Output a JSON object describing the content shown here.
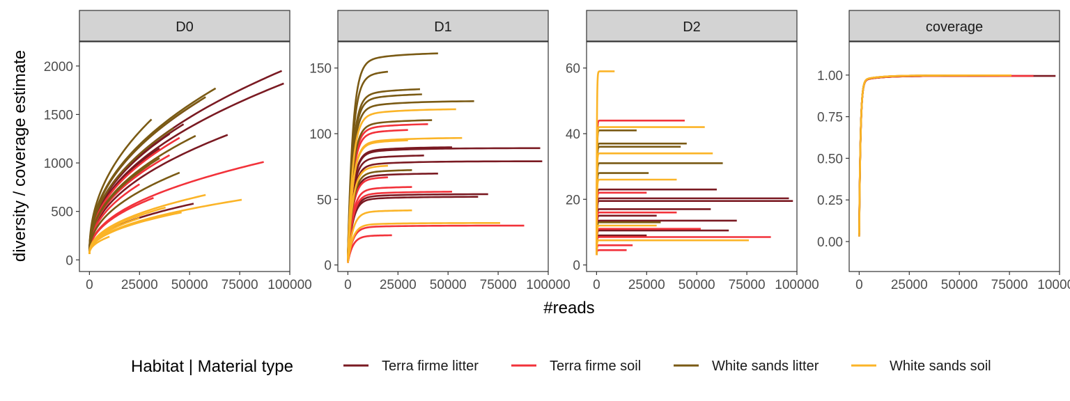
{
  "figure": {
    "ylabel": "diversity / coverage estimate",
    "xlabel": "#reads"
  },
  "legend": {
    "title": "Habitat | Material type",
    "placement": "bottom",
    "entries": [
      {
        "label": "Terra firme litter",
        "color": "#7a1a22"
      },
      {
        "label": "Terra firme soil",
        "color": "#f2323a"
      },
      {
        "label": "White sands litter",
        "color": "#7a5a14"
      },
      {
        "label": "White sands soil",
        "color": "#fbb427"
      }
    ]
  },
  "chart_data": [
    {
      "type": "line",
      "panel": "D0",
      "xlim": [
        -5000,
        100000
      ],
      "ylim": [
        -120,
        2250
      ],
      "xticks": [
        0,
        25000,
        50000,
        75000,
        100000
      ],
      "xtick_labels": [
        "0",
        "25000",
        "50000",
        "75000",
        "100000"
      ],
      "yticks": [
        0,
        500,
        1000,
        1500,
        2000
      ],
      "ytick_labels": [
        "0",
        "500",
        "1000",
        "1500",
        "2000"
      ],
      "grid": false,
      "series": [
        {
          "group": 0,
          "xmax": 97000,
          "ymax": 1820
        },
        {
          "group": 0,
          "xmax": 96000,
          "ymax": 1950
        },
        {
          "group": 0,
          "xmax": 69000,
          "ymax": 1290
        },
        {
          "group": 0,
          "xmax": 52000,
          "ymax": 580
        },
        {
          "group": 0,
          "xmax": 55000,
          "ymax": 1640
        },
        {
          "group": 0,
          "xmax": 47000,
          "ymax": 1400
        },
        {
          "group": 0,
          "xmax": 40000,
          "ymax": 1300
        },
        {
          "group": 0,
          "xmax": 35000,
          "ymax": 1150
        },
        {
          "group": 1,
          "xmax": 87000,
          "ymax": 1010
        },
        {
          "group": 1,
          "xmax": 45000,
          "ymax": 1260
        },
        {
          "group": 1,
          "xmax": 40000,
          "ymax": 1080
        },
        {
          "group": 1,
          "xmax": 30000,
          "ymax": 980
        },
        {
          "group": 1,
          "xmax": 32000,
          "ymax": 640
        },
        {
          "group": 1,
          "xmax": 25000,
          "ymax": 780
        },
        {
          "group": 2,
          "xmax": 63000,
          "ymax": 1770
        },
        {
          "group": 2,
          "xmax": 58000,
          "ymax": 1680
        },
        {
          "group": 2,
          "xmax": 31000,
          "ymax": 1450
        },
        {
          "group": 2,
          "xmax": 42000,
          "ymax": 1360
        },
        {
          "group": 2,
          "xmax": 53000,
          "ymax": 1280
        },
        {
          "group": 2,
          "xmax": 45000,
          "ymax": 900
        },
        {
          "group": 2,
          "xmax": 35000,
          "ymax": 1050
        },
        {
          "group": 3,
          "xmax": 76000,
          "ymax": 620
        },
        {
          "group": 3,
          "xmax": 58000,
          "ymax": 670
        },
        {
          "group": 3,
          "xmax": 46000,
          "ymax": 490
        },
        {
          "group": 3,
          "xmax": 38000,
          "ymax": 540
        },
        {
          "group": 3,
          "xmax": 25000,
          "ymax": 430
        },
        {
          "group": 3,
          "xmax": 10000,
          "ymax": 240
        }
      ]
    },
    {
      "type": "line",
      "panel": "D1",
      "xlim": [
        -5000,
        100000
      ],
      "ylim": [
        -5,
        170
      ],
      "xticks": [
        0,
        25000,
        50000,
        75000,
        100000
      ],
      "xtick_labels": [
        "0",
        "25000",
        "50000",
        "75000",
        "100000"
      ],
      "yticks": [
        0,
        50,
        100,
        150
      ],
      "ytick_labels": [
        "0",
        "50",
        "100",
        "150"
      ],
      "grid": false,
      "series": [
        {
          "group": 0,
          "xmax": 97000,
          "ymax": 79
        },
        {
          "group": 0,
          "xmax": 96000,
          "ymax": 89
        },
        {
          "group": 0,
          "xmax": 70000,
          "ymax": 54
        },
        {
          "group": 0,
          "xmax": 52000,
          "ymax": 90
        },
        {
          "group": 0,
          "xmax": 45000,
          "ymax": 70
        },
        {
          "group": 0,
          "xmax": 38000,
          "ymax": 84
        },
        {
          "group": 0,
          "xmax": 65000,
          "ymax": 52
        },
        {
          "group": 1,
          "xmax": 88000,
          "ymax": 30
        },
        {
          "group": 1,
          "xmax": 52000,
          "ymax": 56
        },
        {
          "group": 1,
          "xmax": 40000,
          "ymax": 108
        },
        {
          "group": 1,
          "xmax": 30000,
          "ymax": 104
        },
        {
          "group": 1,
          "xmax": 32000,
          "ymax": 60
        },
        {
          "group": 1,
          "xmax": 20000,
          "ymax": 68
        },
        {
          "group": 1,
          "xmax": 22000,
          "ymax": 23
        },
        {
          "group": 2,
          "xmax": 45000,
          "ymax": 162
        },
        {
          "group": 2,
          "xmax": 20000,
          "ymax": 150
        },
        {
          "group": 2,
          "xmax": 36000,
          "ymax": 135
        },
        {
          "group": 2,
          "xmax": 63000,
          "ymax": 125
        },
        {
          "group": 2,
          "xmax": 37000,
          "ymax": 131
        },
        {
          "group": 2,
          "xmax": 42000,
          "ymax": 111
        },
        {
          "group": 2,
          "xmax": 32000,
          "ymax": 73
        },
        {
          "group": 3,
          "xmax": 54000,
          "ymax": 119
        },
        {
          "group": 3,
          "xmax": 57000,
          "ymax": 97
        },
        {
          "group": 3,
          "xmax": 76000,
          "ymax": 32
        },
        {
          "group": 3,
          "xmax": 32000,
          "ymax": 42
        },
        {
          "group": 3,
          "xmax": 30000,
          "ymax": 96
        },
        {
          "group": 3,
          "xmax": 20000,
          "ymax": 77
        }
      ]
    },
    {
      "type": "line",
      "panel": "D2",
      "xlim": [
        -5000,
        100000
      ],
      "ylim": [
        -2,
        68
      ],
      "xticks": [
        0,
        25000,
        50000,
        75000,
        100000
      ],
      "xtick_labels": [
        "0",
        "25000",
        "50000",
        "75000",
        "100000"
      ],
      "yticks": [
        0,
        20,
        40,
        60
      ],
      "ytick_labels": [
        "0",
        "20",
        "40",
        "60"
      ],
      "grid": false,
      "series": [
        {
          "group": 0,
          "xmax": 98000,
          "ymax": 19.5
        },
        {
          "group": 0,
          "xmax": 96000,
          "ymax": 20.3
        },
        {
          "group": 0,
          "xmax": 60000,
          "ymax": 23
        },
        {
          "group": 0,
          "xmax": 57000,
          "ymax": 17
        },
        {
          "group": 0,
          "xmax": 70000,
          "ymax": 13.5
        },
        {
          "group": 0,
          "xmax": 66000,
          "ymax": 10.5
        },
        {
          "group": 0,
          "xmax": 30000,
          "ymax": 15
        },
        {
          "group": 0,
          "xmax": 25000,
          "ymax": 9
        },
        {
          "group": 1,
          "xmax": 87000,
          "ymax": 8.5
        },
        {
          "group": 1,
          "xmax": 44000,
          "ymax": 44
        },
        {
          "group": 1,
          "xmax": 52000,
          "ymax": 11
        },
        {
          "group": 1,
          "xmax": 40000,
          "ymax": 16
        },
        {
          "group": 1,
          "xmax": 25000,
          "ymax": 22
        },
        {
          "group": 1,
          "xmax": 15000,
          "ymax": 4.5
        },
        {
          "group": 1,
          "xmax": 18000,
          "ymax": 6
        },
        {
          "group": 2,
          "xmax": 63000,
          "ymax": 31
        },
        {
          "group": 2,
          "xmax": 45000,
          "ymax": 37
        },
        {
          "group": 2,
          "xmax": 42000,
          "ymax": 36
        },
        {
          "group": 2,
          "xmax": 32000,
          "ymax": 13
        },
        {
          "group": 2,
          "xmax": 26000,
          "ymax": 28
        },
        {
          "group": 2,
          "xmax": 20000,
          "ymax": 41
        },
        {
          "group": 3,
          "xmax": 54000,
          "ymax": 42
        },
        {
          "group": 3,
          "xmax": 58000,
          "ymax": 34
        },
        {
          "group": 3,
          "xmax": 76000,
          "ymax": 7.5
        },
        {
          "group": 3,
          "xmax": 40000,
          "ymax": 26
        },
        {
          "group": 3,
          "xmax": 30000,
          "ymax": 12
        },
        {
          "group": 3,
          "xmax": 9000,
          "ymax": 59
        }
      ]
    },
    {
      "type": "line",
      "panel": "coverage",
      "xlim": [
        -5000,
        100000
      ],
      "ylim": [
        -0.18,
        1.2
      ],
      "xticks": [
        0,
        25000,
        50000,
        75000,
        100000
      ],
      "xtick_labels": [
        "0",
        "25000",
        "50000",
        "75000",
        "100000"
      ],
      "yticks": [
        0,
        0.25,
        0.5,
        0.75,
        1
      ],
      "ytick_labels": [
        "0.00",
        "0.25",
        "0.50",
        "0.75",
        "1.00"
      ],
      "grid": false,
      "series": [
        {
          "group": 0,
          "xmax": 98000,
          "ymax": 0.995,
          "ystart": 0.06
        },
        {
          "group": 0,
          "xmax": 70000,
          "ymax": 0.995,
          "ystart": 0.08
        },
        {
          "group": 1,
          "xmax": 87000,
          "ymax": 0.995,
          "ystart": 0.07
        },
        {
          "group": 1,
          "xmax": 45000,
          "ymax": 0.995,
          "ystart": 0.1
        },
        {
          "group": 2,
          "xmax": 63000,
          "ymax": 0.998,
          "ystart": 0.07
        },
        {
          "group": 2,
          "xmax": 45000,
          "ymax": 0.997,
          "ystart": 0.09
        },
        {
          "group": 3,
          "xmax": 76000,
          "ymax": 0.998,
          "ystart": 0.06
        },
        {
          "group": 3,
          "xmax": 54000,
          "ymax": 0.998,
          "ystart": 0.08
        }
      ]
    }
  ]
}
